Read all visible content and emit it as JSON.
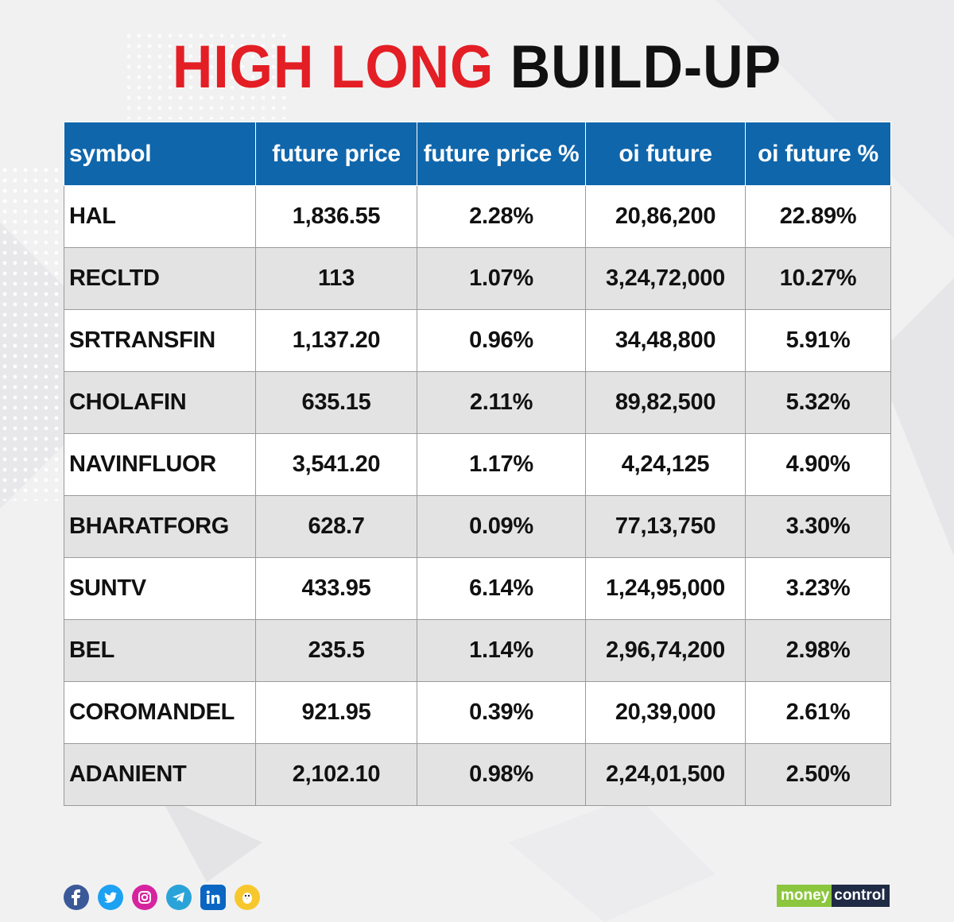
{
  "title": {
    "red": "HIGH LONG",
    "black": "BUILD-UP"
  },
  "colors": {
    "accent_red": "#e31e24",
    "header_blue": "#0f66ab",
    "row_alt": "#e3e3e4"
  },
  "chart_data": {
    "type": "table",
    "title": "HIGH LONG BUILD-UP",
    "columns": [
      "symbol",
      "future price",
      "future price %",
      "oi future",
      "oi future %"
    ],
    "rows": [
      [
        "HAL",
        "1,836.55",
        "2.28%",
        "20,86,200",
        "22.89%"
      ],
      [
        "RECLTD",
        "113",
        "1.07%",
        "3,24,72,000",
        "10.27%"
      ],
      [
        "SRTRANSFIN",
        "1,137.20",
        "0.96%",
        "34,48,800",
        "5.91%"
      ],
      [
        "CHOLAFIN",
        "635.15",
        "2.11%",
        "89,82,500",
        "5.32%"
      ],
      [
        "NAVINFLUOR",
        "3,541.20",
        "1.17%",
        "4,24,125",
        "4.90%"
      ],
      [
        "BHARATFORG",
        "628.7",
        "0.09%",
        "77,13,750",
        "3.30%"
      ],
      [
        "SUNTV",
        "433.95",
        "6.14%",
        "1,24,95,000",
        "3.23%"
      ],
      [
        "BEL",
        "235.5",
        "1.14%",
        "2,96,74,200",
        "2.98%"
      ],
      [
        "COROMANDEL",
        "921.95",
        "0.39%",
        "20,39,000",
        "2.61%"
      ],
      [
        "ADANIENT",
        "2,102.10",
        "0.98%",
        "2,24,01,500",
        "2.50%"
      ]
    ]
  },
  "social": [
    {
      "icon": "facebook-icon",
      "color": "#3b5998"
    },
    {
      "icon": "twitter-icon",
      "color": "#1da1f2"
    },
    {
      "icon": "instagram-icon",
      "color": "#d6249f"
    },
    {
      "icon": "telegram-icon",
      "color": "#2aa3d8"
    },
    {
      "icon": "linkedin-icon",
      "color": "#0a66c2"
    },
    {
      "icon": "koo-icon",
      "color": "#f7c82d"
    }
  ],
  "logo": {
    "part1": "money",
    "part2": "control"
  }
}
